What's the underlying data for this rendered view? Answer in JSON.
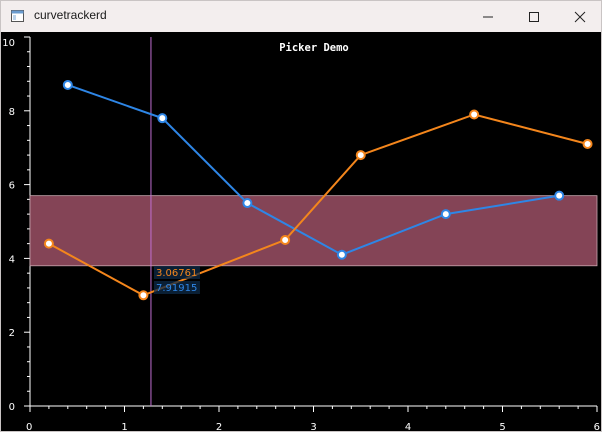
{
  "window": {
    "title": "curvetrackerd",
    "controls": {
      "minimize_icon": "minimize-icon",
      "maximize_icon": "maximize-icon",
      "close_icon": "close-icon"
    }
  },
  "chart_data": {
    "type": "line",
    "title": "Picker Demo",
    "xlim": [
      0,
      6
    ],
    "ylim": [
      0,
      10
    ],
    "x_ticks": [
      "0",
      "1",
      "2",
      "3",
      "4",
      "5",
      "6"
    ],
    "y_ticks": [
      "0",
      "2",
      "4",
      "6",
      "8",
      "10"
    ],
    "grid": false,
    "background": "#000000",
    "series": [
      {
        "color": "#2e86e6",
        "points": [
          [
            0.4,
            8.7
          ],
          [
            1.4,
            7.8
          ],
          [
            2.3,
            5.5
          ],
          [
            3.3,
            4.1
          ],
          [
            4.4,
            5.2
          ],
          [
            5.6,
            5.7
          ]
        ]
      },
      {
        "color": "#f4861c",
        "points": [
          [
            0.2,
            4.4
          ],
          [
            1.2,
            3.0
          ],
          [
            2.7,
            4.5
          ],
          [
            3.5,
            6.8
          ],
          [
            4.7,
            7.9
          ],
          [
            5.9,
            7.1
          ]
        ]
      }
    ],
    "band": {
      "y_from": 3.8,
      "y_to": 5.7,
      "color": "#844456"
    },
    "cursor": {
      "x": 1.28,
      "color": "#c06fd2"
    },
    "tracker": [
      {
        "text": "3.06761",
        "color": "#f4861c"
      },
      {
        "text": "7.91915",
        "color": "#2e86e6"
      }
    ]
  }
}
